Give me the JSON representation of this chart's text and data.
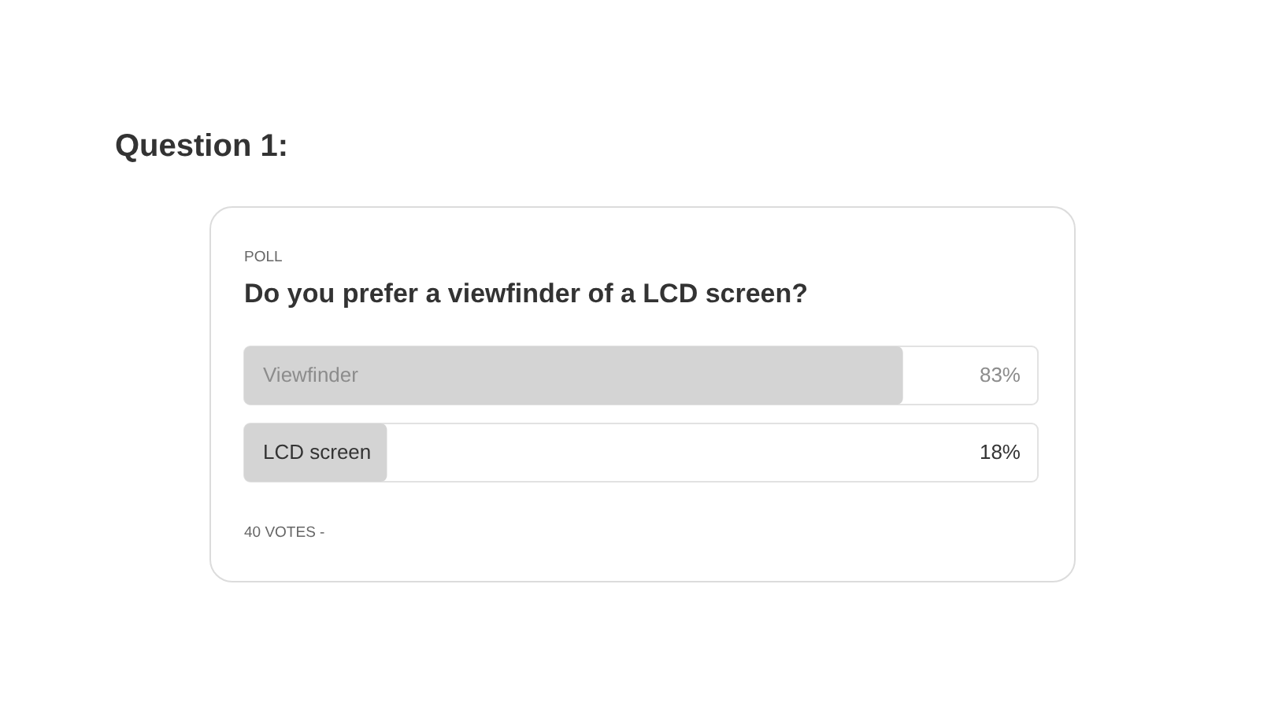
{
  "chart_data": {
    "type": "bar",
    "orientation": "horizontal",
    "title": "Question 1:",
    "subtitle": "Do you prefer a viewfinder of a LCD screen?",
    "categories": [
      "Viewfinder",
      "LCD screen"
    ],
    "values": [
      83,
      18
    ],
    "value_labels": [
      "83%",
      "18%"
    ],
    "color": "#d4d4d4",
    "xlim": [
      0,
      100
    ],
    "tick_labels": "y",
    "annotations": [
      "POLL",
      "40 VOTES -"
    ]
  }
}
